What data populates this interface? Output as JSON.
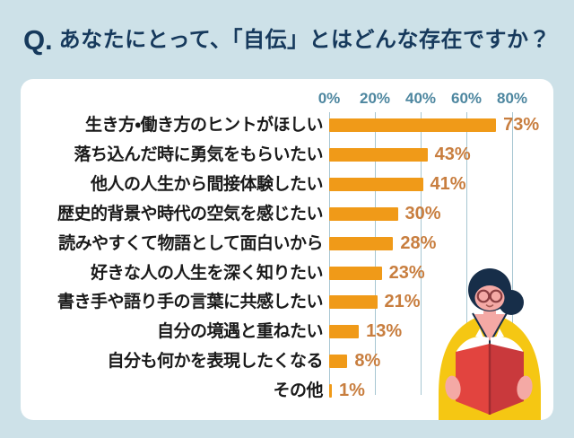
{
  "header": {
    "prefix": "Q.",
    "question": "あなたにとって、「自伝」とはどんな存在ですか？"
  },
  "chart_data": {
    "type": "bar",
    "orientation": "horizontal",
    "title": "あなたにとって、「自伝」とはどんな存在ですか？",
    "categories": [
      "生き方・働き方のヒントがほしい",
      "落ち込んだ時に勇気をもらいたい",
      "他人の人生から間接体験したい",
      "歴史的背景や時代の空気を感じたい",
      "読みやすくて物語として面白いから",
      "好きな人の人生を深く知りたい",
      "書き手や語り手の言葉に共感したい",
      "自分の境遇と重ねたい",
      "自分も何かを表現したくなる",
      "その他"
    ],
    "values": [
      73,
      43,
      41,
      30,
      28,
      23,
      21,
      13,
      8,
      1
    ],
    "value_labels": [
      "73%",
      "43%",
      "41%",
      "30%",
      "28%",
      "23%",
      "21%",
      "13%",
      "8%",
      "1%"
    ],
    "axis_ticks": [
      "0%",
      "20%",
      "40%",
      "60%",
      "80%"
    ],
    "xlim": [
      0,
      80
    ],
    "grid": true,
    "legend": "none"
  },
  "colors": {
    "background": "#cde1e8",
    "card": "#ffffff",
    "headline": "#16395c",
    "bar": "#f09a18",
    "value_label": "#c87e3f",
    "axis_tick": "#4e87a0",
    "gridline": "#a7c6d2",
    "category_label": "#1a1a1a"
  },
  "illustration": {
    "name": "woman-reading-red-book",
    "hair": "#172e49",
    "skin": "#f4a9a5",
    "sweater": "#f5c713",
    "book_left": "#e2443f",
    "book_right": "#c9393c",
    "book_spine": "#a02c30",
    "glasses": "#8a3e41"
  }
}
